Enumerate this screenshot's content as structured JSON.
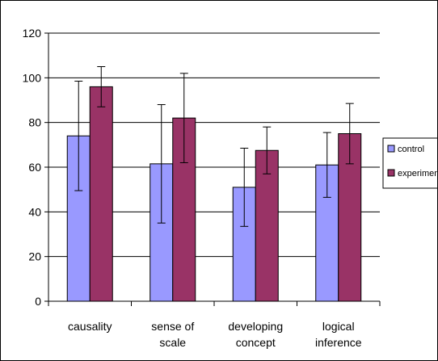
{
  "chart_data": {
    "type": "bar",
    "title": "",
    "xlabel": "",
    "ylabel": "",
    "ylim": [
      0,
      120
    ],
    "yticks": [
      0,
      20,
      40,
      60,
      80,
      100,
      120
    ],
    "grid": true,
    "legend_position": "right",
    "categories": [
      [
        "causality"
      ],
      [
        "sense of",
        "scale"
      ],
      [
        "developing",
        "concept"
      ],
      [
        "logical",
        "inference"
      ]
    ],
    "series": [
      {
        "name": "control",
        "color": "#9999ff",
        "values": [
          74,
          61.5,
          51,
          61
        ],
        "error": [
          24.5,
          26.5,
          17.5,
          14.5
        ]
      },
      {
        "name": "experimental",
        "color": "#993366",
        "values": [
          96,
          82,
          67.5,
          75
        ],
        "error": [
          9,
          20,
          10.5,
          13.5
        ]
      }
    ]
  }
}
